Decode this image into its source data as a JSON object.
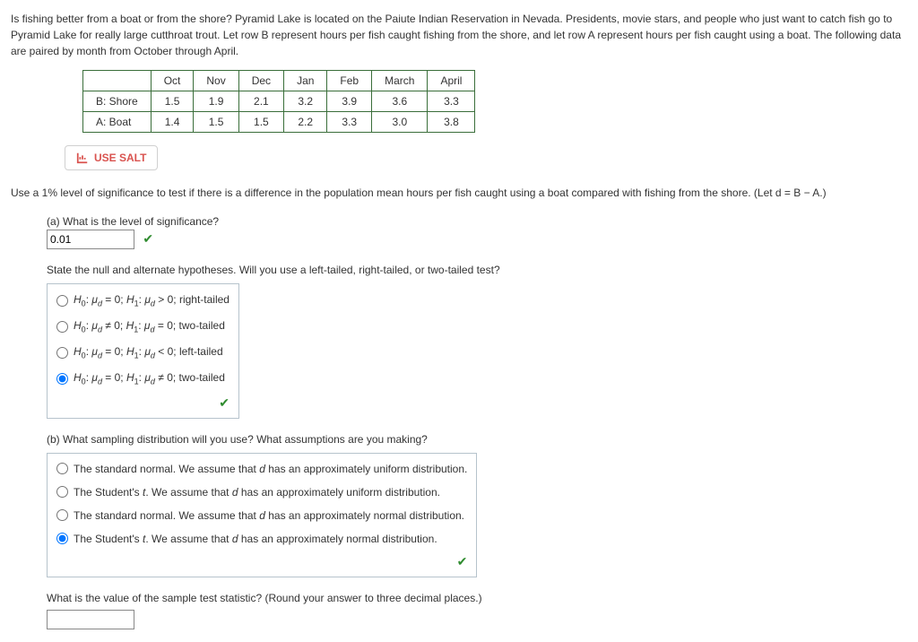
{
  "intro": "Is fishing better from a boat or from the shore? Pyramid Lake is located on the Paiute Indian Reservation in Nevada. Presidents, movie stars, and people who just want to catch fish go to Pyramid Lake for really large cutthroat trout. Let row B represent hours per fish caught fishing from the shore, and let row A represent hours per fish caught using a boat. The following data are paired by month from October through April.",
  "table": {
    "months": [
      "Oct",
      "Nov",
      "Dec",
      "Jan",
      "Feb",
      "March",
      "April"
    ],
    "rows": [
      {
        "label": "B: Shore",
        "vals": [
          "1.5",
          "1.9",
          "2.1",
          "3.2",
          "3.9",
          "3.6",
          "3.3"
        ]
      },
      {
        "label": "A: Boat",
        "vals": [
          "1.4",
          "1.5",
          "1.5",
          "2.2",
          "3.3",
          "3.0",
          "3.8"
        ]
      }
    ]
  },
  "salt_label": "USE SALT",
  "main_q": "Use a 1% level of significance to test if there is a difference in the population mean hours per fish caught using a boat compared with fishing from the shore. (Let d = B − A.)",
  "part_a": {
    "q": "(a) What is the level of significance?",
    "val": "0.01",
    "hyp_q": "State the null and alternate hypotheses. Will you use a left-tailed, right-tailed, or two-tailed test?",
    "opts": [
      {
        "h0": "= 0",
        "h1": "> 0",
        "tail": "right-tailed",
        "sel": false
      },
      {
        "h0": "≠ 0",
        "h1": "= 0",
        "tail": "two-tailed",
        "sel": false
      },
      {
        "h0": "= 0",
        "h1": "< 0",
        "tail": "left-tailed",
        "sel": false
      },
      {
        "h0": "= 0",
        "h1": "≠ 0",
        "tail": "two-tailed",
        "sel": true
      }
    ]
  },
  "part_b": {
    "q": "(b) What sampling distribution will you use? What assumptions are you making?",
    "opts": [
      {
        "txt": "The standard normal. We assume that d has an approximately uniform distribution.",
        "sel": false
      },
      {
        "txt": "The Student's t. We assume that d has an approximately uniform distribution.",
        "sel": false
      },
      {
        "txt": "The standard normal. We assume that d has an approximately normal distribution.",
        "sel": false
      },
      {
        "txt": "The Student's t. We assume that d has an approximately normal distribution.",
        "sel": true
      }
    ]
  },
  "stat_q": "What is the value of the sample test statistic? (Round your answer to three decimal places.)"
}
